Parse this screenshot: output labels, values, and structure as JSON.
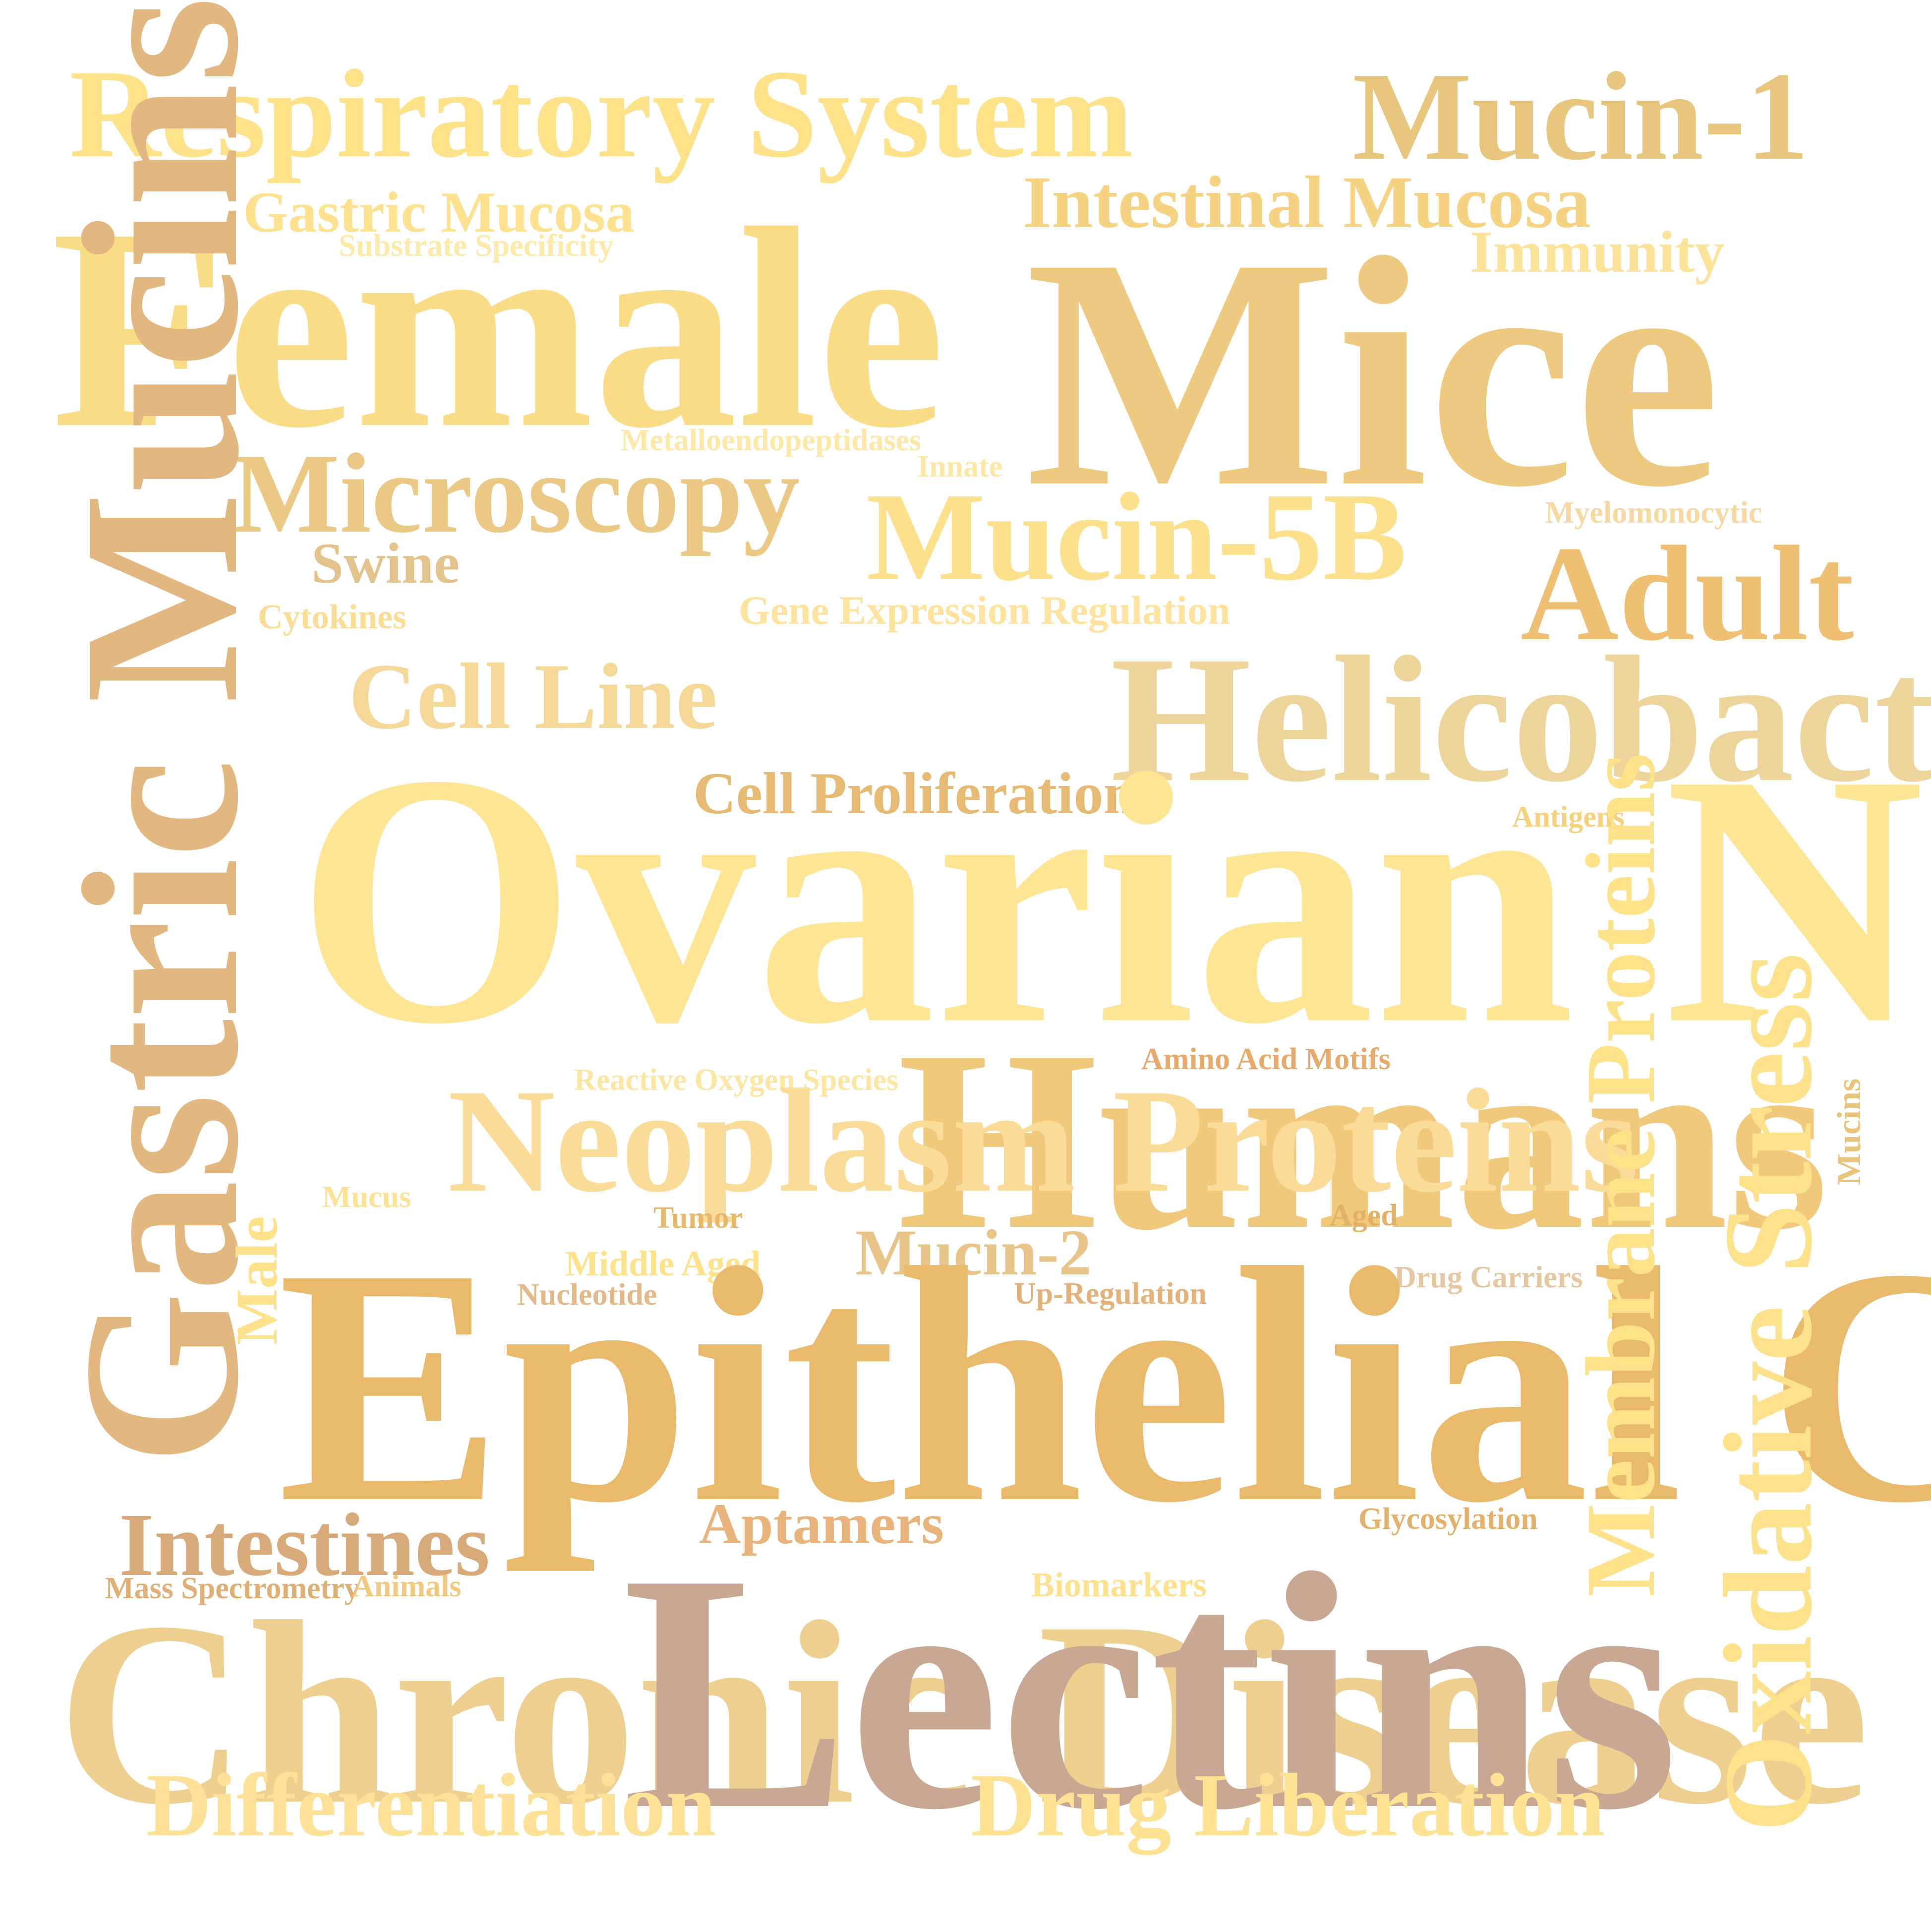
{
  "words": [
    {
      "text": "Respiratory System",
      "color": "#fde28a"
    },
    {
      "text": "Mucin-1",
      "color": "#e9c67e"
    },
    {
      "text": "Gastric Mucosa",
      "color": "#fde18f"
    },
    {
      "text": "Intestinal Mucosa",
      "color": "#f6d383"
    },
    {
      "text": "Substrate Specificity",
      "color": "#fde9a8"
    },
    {
      "text": "Immunity",
      "color": "#fde39a"
    },
    {
      "text": "Female",
      "color": "#fbdc86"
    },
    {
      "text": "Mice",
      "color": "#edca80"
    },
    {
      "text": "Metalloendopeptidases",
      "color": "#fde8a8"
    },
    {
      "text": "Innate",
      "color": "#fde7a6"
    },
    {
      "text": "Microscopy",
      "color": "#ebc985"
    },
    {
      "text": "Myelomonocytic",
      "color": "#f7d8a0"
    },
    {
      "text": "Mucin-5B",
      "color": "#fde08c"
    },
    {
      "text": "Swine",
      "color": "#e3c38c"
    },
    {
      "text": "Adult",
      "color": "#efc074"
    },
    {
      "text": "Cytokines",
      "color": "#fbdc95"
    },
    {
      "text": "Gene Expression Regulation",
      "color": "#fde39e"
    },
    {
      "text": "Cell Line",
      "color": "#f5d898"
    },
    {
      "text": "Helicobacter Infections",
      "color": "#edd49b"
    },
    {
      "text": "Cell Proliferation",
      "color": "#e6ba72"
    },
    {
      "text": "Antigens",
      "color": "#f6d07b"
    },
    {
      "text": "Ovarian Neoplasms",
      "color": "#fde594"
    },
    {
      "text": "Amino Acid Motifs",
      "color": "#e6aa6a"
    },
    {
      "text": "Reactive Oxygen Species",
      "color": "#fde6a2"
    },
    {
      "text": "Humans",
      "color": "#f0c97d"
    },
    {
      "text": "Neoplasm Proteins",
      "color": "#fadb98"
    },
    {
      "text": "Mucus",
      "color": "#fde296"
    },
    {
      "text": "Tumor",
      "color": "#e7b96c"
    },
    {
      "text": "Aged",
      "color": "#e3b166"
    },
    {
      "text": "Mucin-2",
      "color": "#e9c488"
    },
    {
      "text": "Middle Aged",
      "color": "#fde28a"
    },
    {
      "text": "Drug Carriers",
      "color": "#e5c8a1"
    },
    {
      "text": "Nucleotide",
      "color": "#e2b98a"
    },
    {
      "text": "Up-Regulation",
      "color": "#e2b27a"
    },
    {
      "text": "Epithelial Cells",
      "color": "#e9b96c"
    },
    {
      "text": "Intestines",
      "color": "#d9aa79"
    },
    {
      "text": "Aptamers",
      "color": "#e9b47c"
    },
    {
      "text": "Glycosylation",
      "color": "#e4b16d"
    },
    {
      "text": "Mass Spectrometry",
      "color": "#dfb076"
    },
    {
      "text": "Animals",
      "color": "#efca80"
    },
    {
      "text": "Biomarkers",
      "color": "#fde18d"
    },
    {
      "text": "Chronic Disease",
      "color": "#efcf8f"
    },
    {
      "text": "Lectins",
      "color": "#c8a892"
    },
    {
      "text": "Differentiation",
      "color": "#fde196"
    },
    {
      "text": "Drug Liberation",
      "color": "#fde294"
    },
    {
      "text": "Gastric Mucins",
      "color": "#e3b780"
    },
    {
      "text": "Male",
      "color": "#fde28b"
    },
    {
      "text": "Mucins",
      "color": "#e8c47c"
    },
    {
      "text": "Membrane Proteins",
      "color": "#fde28a"
    },
    {
      "text": "Oxidative Stress",
      "color": "#fde28b"
    }
  ]
}
